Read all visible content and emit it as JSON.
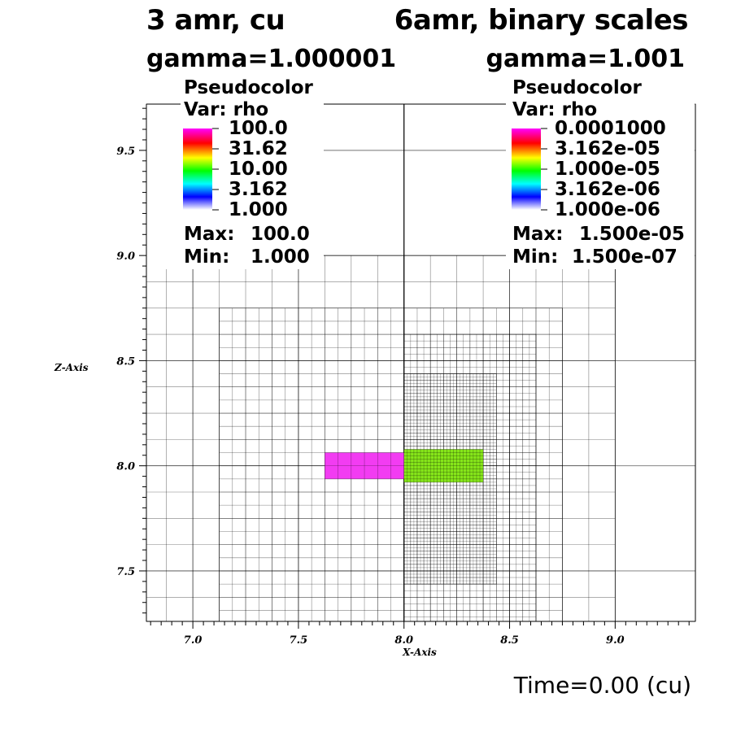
{
  "titles": {
    "left_title": "3 amr, cu",
    "right_title": "6amr, binary scales",
    "left_subtitle": "gamma=1.000001",
    "right_subtitle": "gamma=1.001"
  },
  "legend_left": {
    "type": "Pseudocolor",
    "var": "Var: rho",
    "ticks": [
      "100.0",
      "31.62",
      "10.00",
      "3.162",
      "1.000"
    ],
    "max_label": "Max:",
    "max_value": "100.0",
    "min_label": "Min:",
    "min_value": "1.000"
  },
  "legend_right": {
    "type": "Pseudocolor",
    "var": "Var: rho",
    "ticks": [
      "0.0001000",
      "3.162e-05",
      "1.000e-05",
      "3.162e-06",
      "1.000e-06"
    ],
    "max_label": "Max:",
    "max_value": "1.500e-05",
    "min_label": "Min:",
    "min_value": "1.500e-07"
  },
  "time_label": "Time=0.00 (cu)",
  "chart_data": {
    "type": "heatmap",
    "xlabel": "X-Axis",
    "ylabel": "Z-Axis",
    "xlim": [
      6.78,
      9.38
    ],
    "ylim": [
      7.26,
      9.72
    ],
    "x_ticks": [
      "7.0",
      "7.5",
      "8.0",
      "8.5",
      "9.0"
    ],
    "x_tick_values": [
      7.0,
      7.5,
      8.0,
      8.5,
      9.0
    ],
    "y_ticks": [
      "7.5",
      "8.0",
      "8.5",
      "9.0",
      "9.5"
    ],
    "y_tick_values": [
      7.5,
      8.0,
      8.5,
      9.0,
      9.5
    ],
    "colormap": [
      "#ff00ff",
      "#ff0000",
      "#ffff00",
      "#00ff00",
      "#00ffff",
      "#0000ff",
      "#ffffff"
    ],
    "grids": [
      {
        "name": "left-level-0",
        "x": [
          6.78,
          8.0
        ],
        "y": [
          7.26,
          9.72
        ],
        "dx": 0.5,
        "dy": 0.5
      },
      {
        "name": "left-level-1",
        "x": [
          6.78,
          8.0
        ],
        "y": [
          7.26,
          9.0
        ],
        "dx": 0.125,
        "dy": 0.125
      },
      {
        "name": "left-level-2",
        "x": [
          7.125,
          8.0
        ],
        "y": [
          7.26,
          8.75
        ],
        "dx": 0.0625,
        "dy": 0.0625
      },
      {
        "name": "right-level-0",
        "x": [
          8.0,
          9.38
        ],
        "y": [
          7.26,
          9.72
        ],
        "dx": 0.5,
        "dy": 0.5
      },
      {
        "name": "right-level-1",
        "x": [
          8.0,
          9.0
        ],
        "y": [
          7.26,
          9.0
        ],
        "dx": 0.125,
        "dy": 0.125
      },
      {
        "name": "right-level-2",
        "x": [
          8.0,
          8.75
        ],
        "y": [
          7.26,
          8.75
        ],
        "dx": 0.0625,
        "dy": 0.0625
      },
      {
        "name": "right-level-3",
        "x": [
          8.0,
          8.625
        ],
        "y": [
          7.26,
          8.625
        ],
        "dx": 0.03125,
        "dy": 0.03125
      },
      {
        "name": "right-level-4",
        "x": [
          8.0,
          8.4375
        ],
        "y": [
          7.4375,
          8.4375
        ],
        "dx": 0.015625,
        "dy": 0.015625
      }
    ],
    "regions": [
      {
        "name": "left-high-density",
        "x": [
          7.625,
          8.0
        ],
        "y": [
          7.9375,
          8.0625
        ],
        "value": 100.0,
        "color": "#f23cf2"
      },
      {
        "name": "right-density",
        "x": [
          8.0,
          8.375
        ],
        "y": [
          7.921875,
          8.078125
        ],
        "value": 1e-05,
        "color": "#86e61a"
      }
    ]
  }
}
